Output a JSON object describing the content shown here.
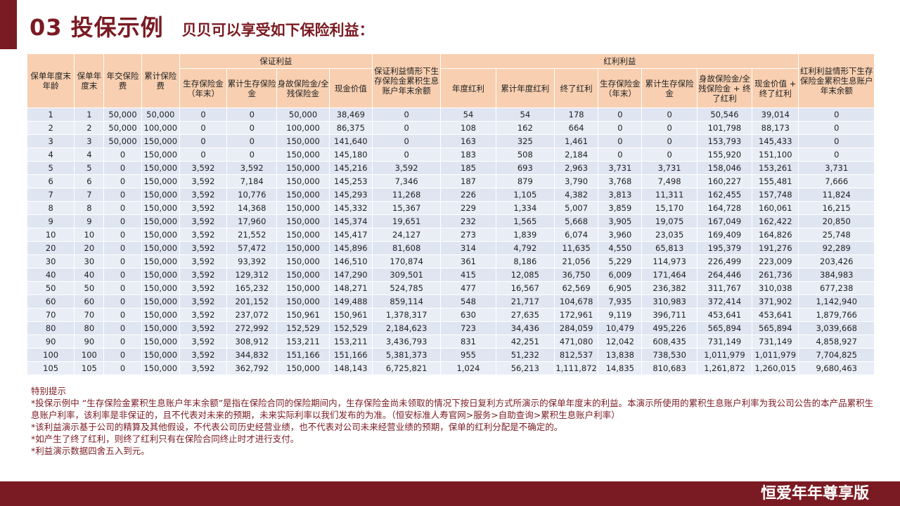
{
  "header": {
    "title": "03 投保示例",
    "subtitle": "贝贝可以享受如下保险利益："
  },
  "table": {
    "group_headers": {
      "guarantee": "保证利益",
      "guarantee_balance": "保证利益情形下生存保险金累积生息账户年末余额",
      "bonus": "红利利益",
      "bonus_balance": "红利利益情形下生存保险金累积生息账户年末余额"
    },
    "columns": {
      "age": "保单年度末年龄",
      "year": "保单年度末",
      "premium": "年交保险费",
      "cum_premium": "累计保险费",
      "g_survival": "生存保险金（年末）",
      "g_cum_survival": "累计生存保险金",
      "g_death": "身故保险金/全残保险金",
      "g_cash": "现金价值",
      "b_annual": "年度红利",
      "b_cum_annual": "累计年度红利",
      "b_terminal": "终了红利",
      "b_survival": "生存保险金（年末）",
      "b_cum_survival": "累计生存保险金",
      "b_death": "身故保险金/全残保险金 + 终了红利",
      "b_cash": "现金价值 + 终了红利"
    },
    "rows": [
      [
        "1",
        "1",
        "50,000",
        "50,000",
        "0",
        "0",
        "50,000",
        "38,469",
        "0",
        "54",
        "54",
        "178",
        "0",
        "0",
        "50,546",
        "39,014",
        "0"
      ],
      [
        "2",
        "2",
        "50,000",
        "100,000",
        "0",
        "0",
        "100,000",
        "86,375",
        "0",
        "108",
        "162",
        "664",
        "0",
        "0",
        "101,798",
        "88,173",
        "0"
      ],
      [
        "3",
        "3",
        "50,000",
        "150,000",
        "0",
        "0",
        "150,000",
        "141,640",
        "0",
        "163",
        "325",
        "1,461",
        "0",
        "0",
        "153,793",
        "145,433",
        "0"
      ],
      [
        "4",
        "4",
        "0",
        "150,000",
        "0",
        "0",
        "150,000",
        "145,180",
        "0",
        "183",
        "508",
        "2,184",
        "0",
        "0",
        "155,920",
        "151,100",
        "0"
      ],
      [
        "5",
        "5",
        "0",
        "150,000",
        "3,592",
        "3,592",
        "150,000",
        "145,216",
        "3,592",
        "185",
        "693",
        "2,963",
        "3,731",
        "3,731",
        "158,046",
        "153,261",
        "3,731"
      ],
      [
        "6",
        "6",
        "0",
        "150,000",
        "3,592",
        "7,184",
        "150,000",
        "145,253",
        "7,346",
        "187",
        "879",
        "3,790",
        "3,768",
        "7,498",
        "160,227",
        "155,481",
        "7,666"
      ],
      [
        "7",
        "7",
        "0",
        "150,000",
        "3,592",
        "10,776",
        "150,000",
        "145,293",
        "11,268",
        "226",
        "1,105",
        "4,382",
        "3,813",
        "11,311",
        "162,455",
        "157,748",
        "11,824"
      ],
      [
        "8",
        "8",
        "0",
        "150,000",
        "3,592",
        "14,368",
        "150,000",
        "145,332",
        "15,367",
        "229",
        "1,334",
        "5,007",
        "3,859",
        "15,170",
        "164,728",
        "160,061",
        "16,215"
      ],
      [
        "9",
        "9",
        "0",
        "150,000",
        "3,592",
        "17,960",
        "150,000",
        "145,374",
        "19,651",
        "232",
        "1,565",
        "5,668",
        "3,905",
        "19,075",
        "167,049",
        "162,422",
        "20,850"
      ],
      [
        "10",
        "10",
        "0",
        "150,000",
        "3,592",
        "21,552",
        "150,000",
        "145,417",
        "24,127",
        "273",
        "1,839",
        "6,074",
        "3,960",
        "23,035",
        "169,409",
        "164,826",
        "25,748"
      ],
      [
        "20",
        "20",
        "0",
        "150,000",
        "3,592",
        "57,472",
        "150,000",
        "145,896",
        "81,608",
        "314",
        "4,792",
        "11,635",
        "4,550",
        "65,813",
        "195,379",
        "191,276",
        "92,289"
      ],
      [
        "30",
        "30",
        "0",
        "150,000",
        "3,592",
        "93,392",
        "150,000",
        "146,510",
        "170,874",
        "361",
        "8,186",
        "21,056",
        "5,229",
        "114,973",
        "226,499",
        "223,009",
        "203,426"
      ],
      [
        "40",
        "40",
        "0",
        "150,000",
        "3,592",
        "129,312",
        "150,000",
        "147,290",
        "309,501",
        "415",
        "12,085",
        "36,750",
        "6,009",
        "171,464",
        "264,446",
        "261,736",
        "384,983"
      ],
      [
        "50",
        "50",
        "0",
        "150,000",
        "3,592",
        "165,232",
        "150,000",
        "148,271",
        "524,785",
        "477",
        "16,567",
        "62,569",
        "6,905",
        "236,382",
        "311,767",
        "310,038",
        "677,238"
      ],
      [
        "60",
        "60",
        "0",
        "150,000",
        "3,592",
        "201,152",
        "150,000",
        "149,488",
        "859,114",
        "548",
        "21,717",
        "104,678",
        "7,935",
        "310,983",
        "372,414",
        "371,902",
        "1,142,940"
      ],
      [
        "70",
        "70",
        "0",
        "150,000",
        "3,592",
        "237,072",
        "150,961",
        "150,961",
        "1,378,317",
        "630",
        "27,635",
        "172,961",
        "9,119",
        "396,711",
        "453,641",
        "453,641",
        "1,879,766"
      ],
      [
        "80",
        "80",
        "0",
        "150,000",
        "3,592",
        "272,992",
        "152,529",
        "152,529",
        "2,184,623",
        "723",
        "34,436",
        "284,059",
        "10,479",
        "495,226",
        "565,894",
        "565,894",
        "3,039,668"
      ],
      [
        "90",
        "90",
        "0",
        "150,000",
        "3,592",
        "308,912",
        "153,211",
        "153,211",
        "3,436,793",
        "831",
        "42,251",
        "471,080",
        "12,042",
        "608,435",
        "731,149",
        "731,149",
        "4,858,927"
      ],
      [
        "100",
        "100",
        "0",
        "150,000",
        "3,592",
        "344,832",
        "151,166",
        "151,166",
        "5,381,373",
        "955",
        "51,232",
        "812,537",
        "13,838",
        "738,530",
        "1,011,979",
        "1,011,979",
        "7,704,825"
      ],
      [
        "105",
        "105",
        "0",
        "150,000",
        "3,592",
        "362,792",
        "150,000",
        "148,143",
        "6,725,821",
        "1,024",
        "56,213",
        "1,111,872",
        "14,835",
        "810,683",
        "1,261,872",
        "1,260,015",
        "9,680,463"
      ]
    ]
  },
  "notes": {
    "heading": "特别提示",
    "items": [
      "*投保示例中 “生存保险金累积生息账户年末余额”是指在保险合同的保险期间内，生存保险金尚未领取的情况下按日复利方式所演示的保单年度末的利益。本演示所使用的累积生息账户利率为我公司公告的本产品累积生息账户利率，该利率是非保证的，且不代表对未来的预期，未来实际利率以我们发布的为准。（恒安标准人寿官网>服务>自助查询>累积生息账户利率）",
      "*该利益演示基于公司的精算及其他假设，不代表公司历史经营业绩，也不代表对公司未来经营业绩的预期，保单的红利分配是不确定的。",
      "*如产生了终了红利，则终了红利只有在保险合同终止时才进行支付。",
      "*利益演示数据四舍五入到元。"
    ]
  },
  "footer": {
    "brand": "恒爱年年尊享版"
  },
  "colors": {
    "brand": "#7a1a22",
    "header_bg": "#f8cfb0",
    "row_bg": "#dfe5f1"
  }
}
